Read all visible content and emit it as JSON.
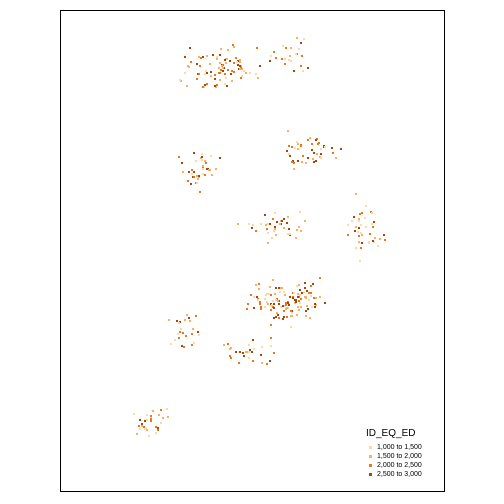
{
  "map": {
    "legend": {
      "title": "ID_EQ_ED",
      "classes": [
        {
          "label": "1,000 to 1,500",
          "color": "#fdd9a8"
        },
        {
          "label": "1,500 to 2,000",
          "color": "#fdae61"
        },
        {
          "label": "2,000 to 2,500",
          "color": "#e8781f"
        },
        {
          "label": "2,500 to 3,000",
          "color": "#a6460c"
        }
      ]
    }
  }
}
